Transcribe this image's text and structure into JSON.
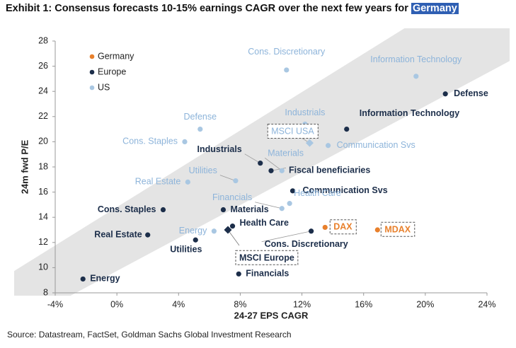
{
  "header": {
    "title_main": "Exhibit 1: Consensus forecasts 10-15% earnings CAGR over the next few years for",
    "title_highlight": "Germany"
  },
  "footer": {
    "source": "Source: Datastream, FactSet, Goldman Sachs Global Investment Research"
  },
  "colors": {
    "germany": "#e8802c",
    "europe": "#1c2e4a",
    "us": "#a9c7e2",
    "us_text": "#8db4da",
    "band": "#e4e4e4",
    "axis": "#999999"
  },
  "chart_data": {
    "type": "scatter",
    "title": "",
    "xlabel": "24-27 EPS CAGR",
    "ylabel": "24m fwd P/E",
    "xlim": [
      -4,
      24
    ],
    "ylim": [
      8,
      28
    ],
    "x_ticks": [
      -4,
      0,
      4,
      8,
      12,
      16,
      20,
      24
    ],
    "x_tick_labels": [
      "-4%",
      "0%",
      "4%",
      "8%",
      "12%",
      "16%",
      "20%",
      "24%"
    ],
    "y_ticks": [
      8,
      10,
      12,
      14,
      16,
      18,
      20,
      22,
      24,
      26,
      28
    ],
    "y_tick_labels": [
      "8",
      "10",
      "12",
      "14",
      "16",
      "18",
      "20",
      "22",
      "24",
      "26",
      "28"
    ],
    "grid": false,
    "legend_position": "top-left",
    "legend": [
      "Germany",
      "Europe",
      "US"
    ],
    "series": [
      {
        "name": "Germany",
        "points": [
          {
            "label": "DAX",
            "x": 13.5,
            "y": 13.2,
            "boxed": true
          },
          {
            "label": "MDAX",
            "x": 16.9,
            "y": 13.0,
            "boxed": true
          }
        ]
      },
      {
        "name": "Europe",
        "points": [
          {
            "label": "Defense",
            "x": 21.3,
            "y": 23.8
          },
          {
            "label": "Information Technology",
            "x": 14.9,
            "y": 21.0
          },
          {
            "label": "Industrials",
            "x": 9.3,
            "y": 18.3
          },
          {
            "label": "Fiscal beneficiaries",
            "x": 10.0,
            "y": 17.7
          },
          {
            "label": "Communication Svs",
            "x": 11.4,
            "y": 16.1
          },
          {
            "label": "Cons. Staples",
            "x": 3.0,
            "y": 14.6
          },
          {
            "label": "Materials",
            "x": 6.9,
            "y": 14.6
          },
          {
            "label": "Health Care",
            "x": 7.5,
            "y": 13.3
          },
          {
            "label": "Real Estate",
            "x": 2.0,
            "y": 12.6
          },
          {
            "label": "MSCI Europe",
            "x": 7.2,
            "y": 13.0,
            "boxed": true,
            "marker": "diamond"
          },
          {
            "label": "Cons. Discretionary",
            "x": 12.6,
            "y": 12.9
          },
          {
            "label": "Utilities",
            "x": 5.1,
            "y": 12.2
          },
          {
            "label": "Energy",
            "x": -2.2,
            "y": 9.1
          },
          {
            "label": "Financials",
            "x": 7.9,
            "y": 9.5
          }
        ]
      },
      {
        "name": "US",
        "points": [
          {
            "label": "Cons. Discretionary",
            "x": 11.0,
            "y": 25.7
          },
          {
            "label": "Information Technology",
            "x": 19.4,
            "y": 25.2
          },
          {
            "label": "Defense",
            "x": 5.4,
            "y": 21.0
          },
          {
            "label": "Cons. Staples",
            "x": 4.4,
            "y": 20.0
          },
          {
            "label": "Industrials",
            "x": 12.2,
            "y": 21.4
          },
          {
            "label": "MSCI USA",
            "x": 12.5,
            "y": 19.9,
            "boxed": true,
            "marker": "diamond"
          },
          {
            "label": "Communication Svs",
            "x": 13.7,
            "y": 19.7
          },
          {
            "label": "Materials",
            "x": 10.7,
            "y": 17.7
          },
          {
            "label": "Utilities",
            "x": 7.7,
            "y": 16.9
          },
          {
            "label": "Real Estate",
            "x": 4.6,
            "y": 16.8
          },
          {
            "label": "Financials",
            "x": 10.7,
            "y": 14.7
          },
          {
            "label": "Health Care",
            "x": 11.2,
            "y": 15.1
          },
          {
            "label": "Energy",
            "x": 6.3,
            "y": 12.9
          }
        ]
      }
    ]
  }
}
